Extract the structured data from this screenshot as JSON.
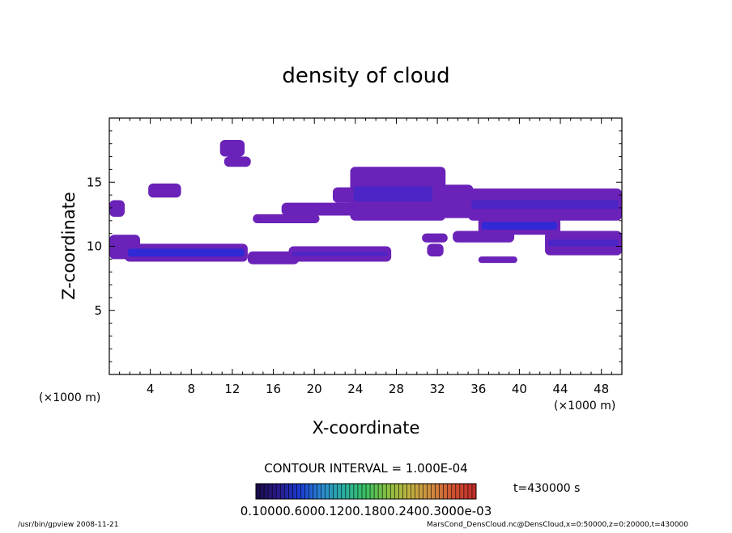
{
  "chart_data": {
    "type": "heatmap",
    "title": "density of cloud",
    "xlabel": "X-coordinate",
    "ylabel": "Z-coordinate",
    "x_unit_left": "(×1000 m)",
    "x_unit_right": "(×1000 m)",
    "xlim": [
      0,
      50
    ],
    "ylim": [
      0,
      20
    ],
    "x_ticks": [
      "4",
      "8",
      "12",
      "16",
      "20",
      "24",
      "28",
      "32",
      "36",
      "40",
      "44",
      "48"
    ],
    "y_ticks": [
      "5",
      "10",
      "15"
    ],
    "contour_interval_text": "CONTOUR INTERVAL = 1.000E-04",
    "time_text": "t=430000 s",
    "colorbar_labels_text": "0.10000.6000.1200.1800.2400.3000e-03",
    "colorbar_colors": [
      "#1a0a4a",
      "#2a1a8a",
      "#1a3ad0",
      "#2a8ad0",
      "#2ab0a0",
      "#3ac060",
      "#8ac040",
      "#c0b040",
      "#d08a40",
      "#d05030",
      "#c02a2a"
    ],
    "cloud_color": "#6a22b8",
    "cloud_core_color": "#2a2ad8",
    "cloud_regions": [
      {
        "x": [
          0.0,
          1.5
        ],
        "z": [
          12.3,
          13.6
        ],
        "level": "low"
      },
      {
        "x": [
          0.0,
          3.0
        ],
        "z": [
          9.0,
          10.9
        ],
        "level": "low"
      },
      {
        "x": [
          1.5,
          13.5
        ],
        "z": [
          8.8,
          10.2
        ],
        "level": "high"
      },
      {
        "x": [
          13.5,
          18.5
        ],
        "z": [
          8.6,
          9.6
        ],
        "level": "low"
      },
      {
        "x": [
          17.5,
          27.5
        ],
        "z": [
          8.8,
          10.0
        ],
        "level": "mid"
      },
      {
        "x": [
          3.8,
          7.0
        ],
        "z": [
          13.8,
          14.9
        ],
        "level": "low"
      },
      {
        "x": [
          10.8,
          13.2
        ],
        "z": [
          17.0,
          18.3
        ],
        "level": "low"
      },
      {
        "x": [
          11.2,
          13.8
        ],
        "z": [
          16.2,
          17.0
        ],
        "level": "low"
      },
      {
        "x": [
          14.0,
          20.5
        ],
        "z": [
          11.8,
          12.5
        ],
        "level": "low"
      },
      {
        "x": [
          16.8,
          24.5
        ],
        "z": [
          12.4,
          13.4
        ],
        "level": "low"
      },
      {
        "x": [
          21.8,
          24.0
        ],
        "z": [
          13.4,
          14.6
        ],
        "level": "low"
      },
      {
        "x": [
          23.5,
          32.8
        ],
        "z": [
          12.0,
          16.2
        ],
        "level": "mid"
      },
      {
        "x": [
          31.5,
          35.5
        ],
        "z": [
          12.2,
          14.8
        ],
        "level": "low"
      },
      {
        "x": [
          35.0,
          50.0
        ],
        "z": [
          12.0,
          14.5
        ],
        "level": "mid"
      },
      {
        "x": [
          36.0,
          44.0
        ],
        "z": [
          10.9,
          12.3
        ],
        "level": "high"
      },
      {
        "x": [
          33.5,
          39.5
        ],
        "z": [
          10.3,
          11.2
        ],
        "level": "low"
      },
      {
        "x": [
          42.5,
          50.0
        ],
        "z": [
          9.3,
          11.2
        ],
        "level": "mid"
      },
      {
        "x": [
          36.0,
          39.8
        ],
        "z": [
          8.7,
          9.2
        ],
        "level": "low"
      },
      {
        "x": [
          30.5,
          33.0
        ],
        "z": [
          10.3,
          11.0
        ],
        "level": "low"
      },
      {
        "x": [
          31.0,
          32.6
        ],
        "z": [
          9.2,
          10.2
        ],
        "level": "low"
      }
    ]
  },
  "footer": {
    "left": "/usr/bin/gpview  2008-11-21",
    "right": "MarsCond_DensCloud.nc@DensCloud,x=0:50000,z=0:20000,t=430000"
  }
}
